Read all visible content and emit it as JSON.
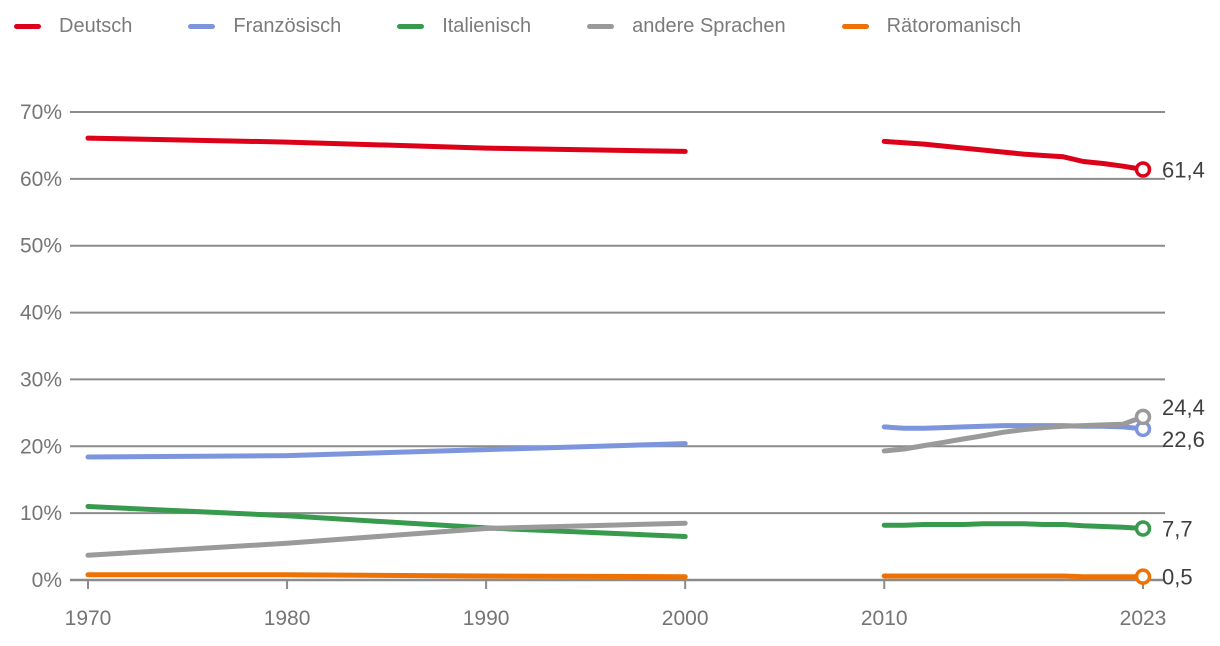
{
  "legend": {
    "items": [
      {
        "label": "Deutsch",
        "color": "#dc0018"
      },
      {
        "label": "Französisch",
        "color": "#7d95dc"
      },
      {
        "label": "Italienisch",
        "color": "#379a4d"
      },
      {
        "label": "andere Sprachen",
        "color": "#9a9a9a"
      },
      {
        "label": "Rätoromanisch",
        "color": "#ee7203"
      }
    ]
  },
  "chart_data": {
    "type": "line",
    "unit": "percent",
    "x_axis": {
      "min": 1970,
      "max": 2023,
      "ticks": [
        1970,
        1980,
        1990,
        2000,
        2010,
        2023
      ]
    },
    "y_axis": {
      "min": 0,
      "max": 70,
      "ticks": [
        0,
        10,
        20,
        30,
        40,
        50,
        60,
        70
      ],
      "tick_suffix": "%",
      "grid": true
    },
    "data_gap": "no data drawn between 2000 and 2010",
    "series": [
      {
        "name": "Deutsch",
        "color": "#dc0018",
        "end_label": "61,4",
        "segments": [
          [
            [
              1970,
              66.1
            ],
            [
              1980,
              65.5
            ],
            [
              1990,
              64.6
            ],
            [
              2000,
              64.1
            ]
          ],
          [
            [
              2010,
              65.6
            ],
            [
              2011,
              65.4
            ],
            [
              2012,
              65.2
            ],
            [
              2013,
              64.9
            ],
            [
              2014,
              64.6
            ],
            [
              2015,
              64.3
            ],
            [
              2016,
              64.0
            ],
            [
              2017,
              63.7
            ],
            [
              2018,
              63.5
            ],
            [
              2019,
              63.3
            ],
            [
              2020,
              62.6
            ],
            [
              2021,
              62.3
            ],
            [
              2022,
              61.9
            ],
            [
              2023,
              61.4
            ]
          ]
        ]
      },
      {
        "name": "Französisch",
        "color": "#7d95dc",
        "end_label": "22,6",
        "segments": [
          [
            [
              1970,
              18.4
            ],
            [
              1980,
              18.6
            ],
            [
              1990,
              19.5
            ],
            [
              2000,
              20.4
            ]
          ],
          [
            [
              2010,
              22.9
            ],
            [
              2011,
              22.7
            ],
            [
              2012,
              22.7
            ],
            [
              2013,
              22.8
            ],
            [
              2014,
              22.9
            ],
            [
              2015,
              23.0
            ],
            [
              2016,
              23.1
            ],
            [
              2017,
              23.1
            ],
            [
              2018,
              23.1
            ],
            [
              2019,
              23.1
            ],
            [
              2020,
              23.0
            ],
            [
              2021,
              23.0
            ],
            [
              2022,
              22.9
            ],
            [
              2023,
              22.6
            ]
          ]
        ]
      },
      {
        "name": "Italienisch",
        "color": "#379a4d",
        "end_label": "7,7",
        "segments": [
          [
            [
              1970,
              11.0
            ],
            [
              1980,
              9.6
            ],
            [
              1990,
              7.8
            ],
            [
              2000,
              6.5
            ]
          ],
          [
            [
              2010,
              8.2
            ],
            [
              2011,
              8.2
            ],
            [
              2012,
              8.3
            ],
            [
              2013,
              8.3
            ],
            [
              2014,
              8.3
            ],
            [
              2015,
              8.4
            ],
            [
              2016,
              8.4
            ],
            [
              2017,
              8.4
            ],
            [
              2018,
              8.3
            ],
            [
              2019,
              8.3
            ],
            [
              2020,
              8.1
            ],
            [
              2021,
              8.0
            ],
            [
              2022,
              7.9
            ],
            [
              2023,
              7.7
            ]
          ]
        ]
      },
      {
        "name": "andere Sprachen",
        "color": "#9a9a9a",
        "end_label": "24,4",
        "segments": [
          [
            [
              1970,
              3.7
            ],
            [
              1980,
              5.5
            ],
            [
              1990,
              7.7
            ],
            [
              2000,
              8.5
            ]
          ],
          [
            [
              2010,
              19.3
            ],
            [
              2011,
              19.6
            ],
            [
              2012,
              20.1
            ],
            [
              2013,
              20.6
            ],
            [
              2014,
              21.1
            ],
            [
              2015,
              21.6
            ],
            [
              2016,
              22.1
            ],
            [
              2017,
              22.5
            ],
            [
              2018,
              22.8
            ],
            [
              2019,
              23.0
            ],
            [
              2020,
              23.1
            ],
            [
              2021,
              23.2
            ],
            [
              2022,
              23.3
            ],
            [
              2023,
              24.4
            ]
          ]
        ]
      },
      {
        "name": "Rätoromanisch",
        "color": "#ee7203",
        "end_label": "0,5",
        "segments": [
          [
            [
              1970,
              0.8
            ],
            [
              1980,
              0.8
            ],
            [
              1990,
              0.6
            ],
            [
              2000,
              0.5
            ]
          ],
          [
            [
              2010,
              0.6
            ],
            [
              2011,
              0.6
            ],
            [
              2012,
              0.6
            ],
            [
              2013,
              0.6
            ],
            [
              2014,
              0.6
            ],
            [
              2015,
              0.6
            ],
            [
              2016,
              0.6
            ],
            [
              2017,
              0.6
            ],
            [
              2018,
              0.6
            ],
            [
              2019,
              0.6
            ],
            [
              2020,
              0.5
            ],
            [
              2021,
              0.5
            ],
            [
              2022,
              0.5
            ],
            [
              2023,
              0.5
            ]
          ]
        ]
      }
    ]
  },
  "colors": {
    "grid": "#8b8b8b",
    "axis_text": "#757575",
    "value_label": "#3f3f3f",
    "background": "#ffffff"
  }
}
